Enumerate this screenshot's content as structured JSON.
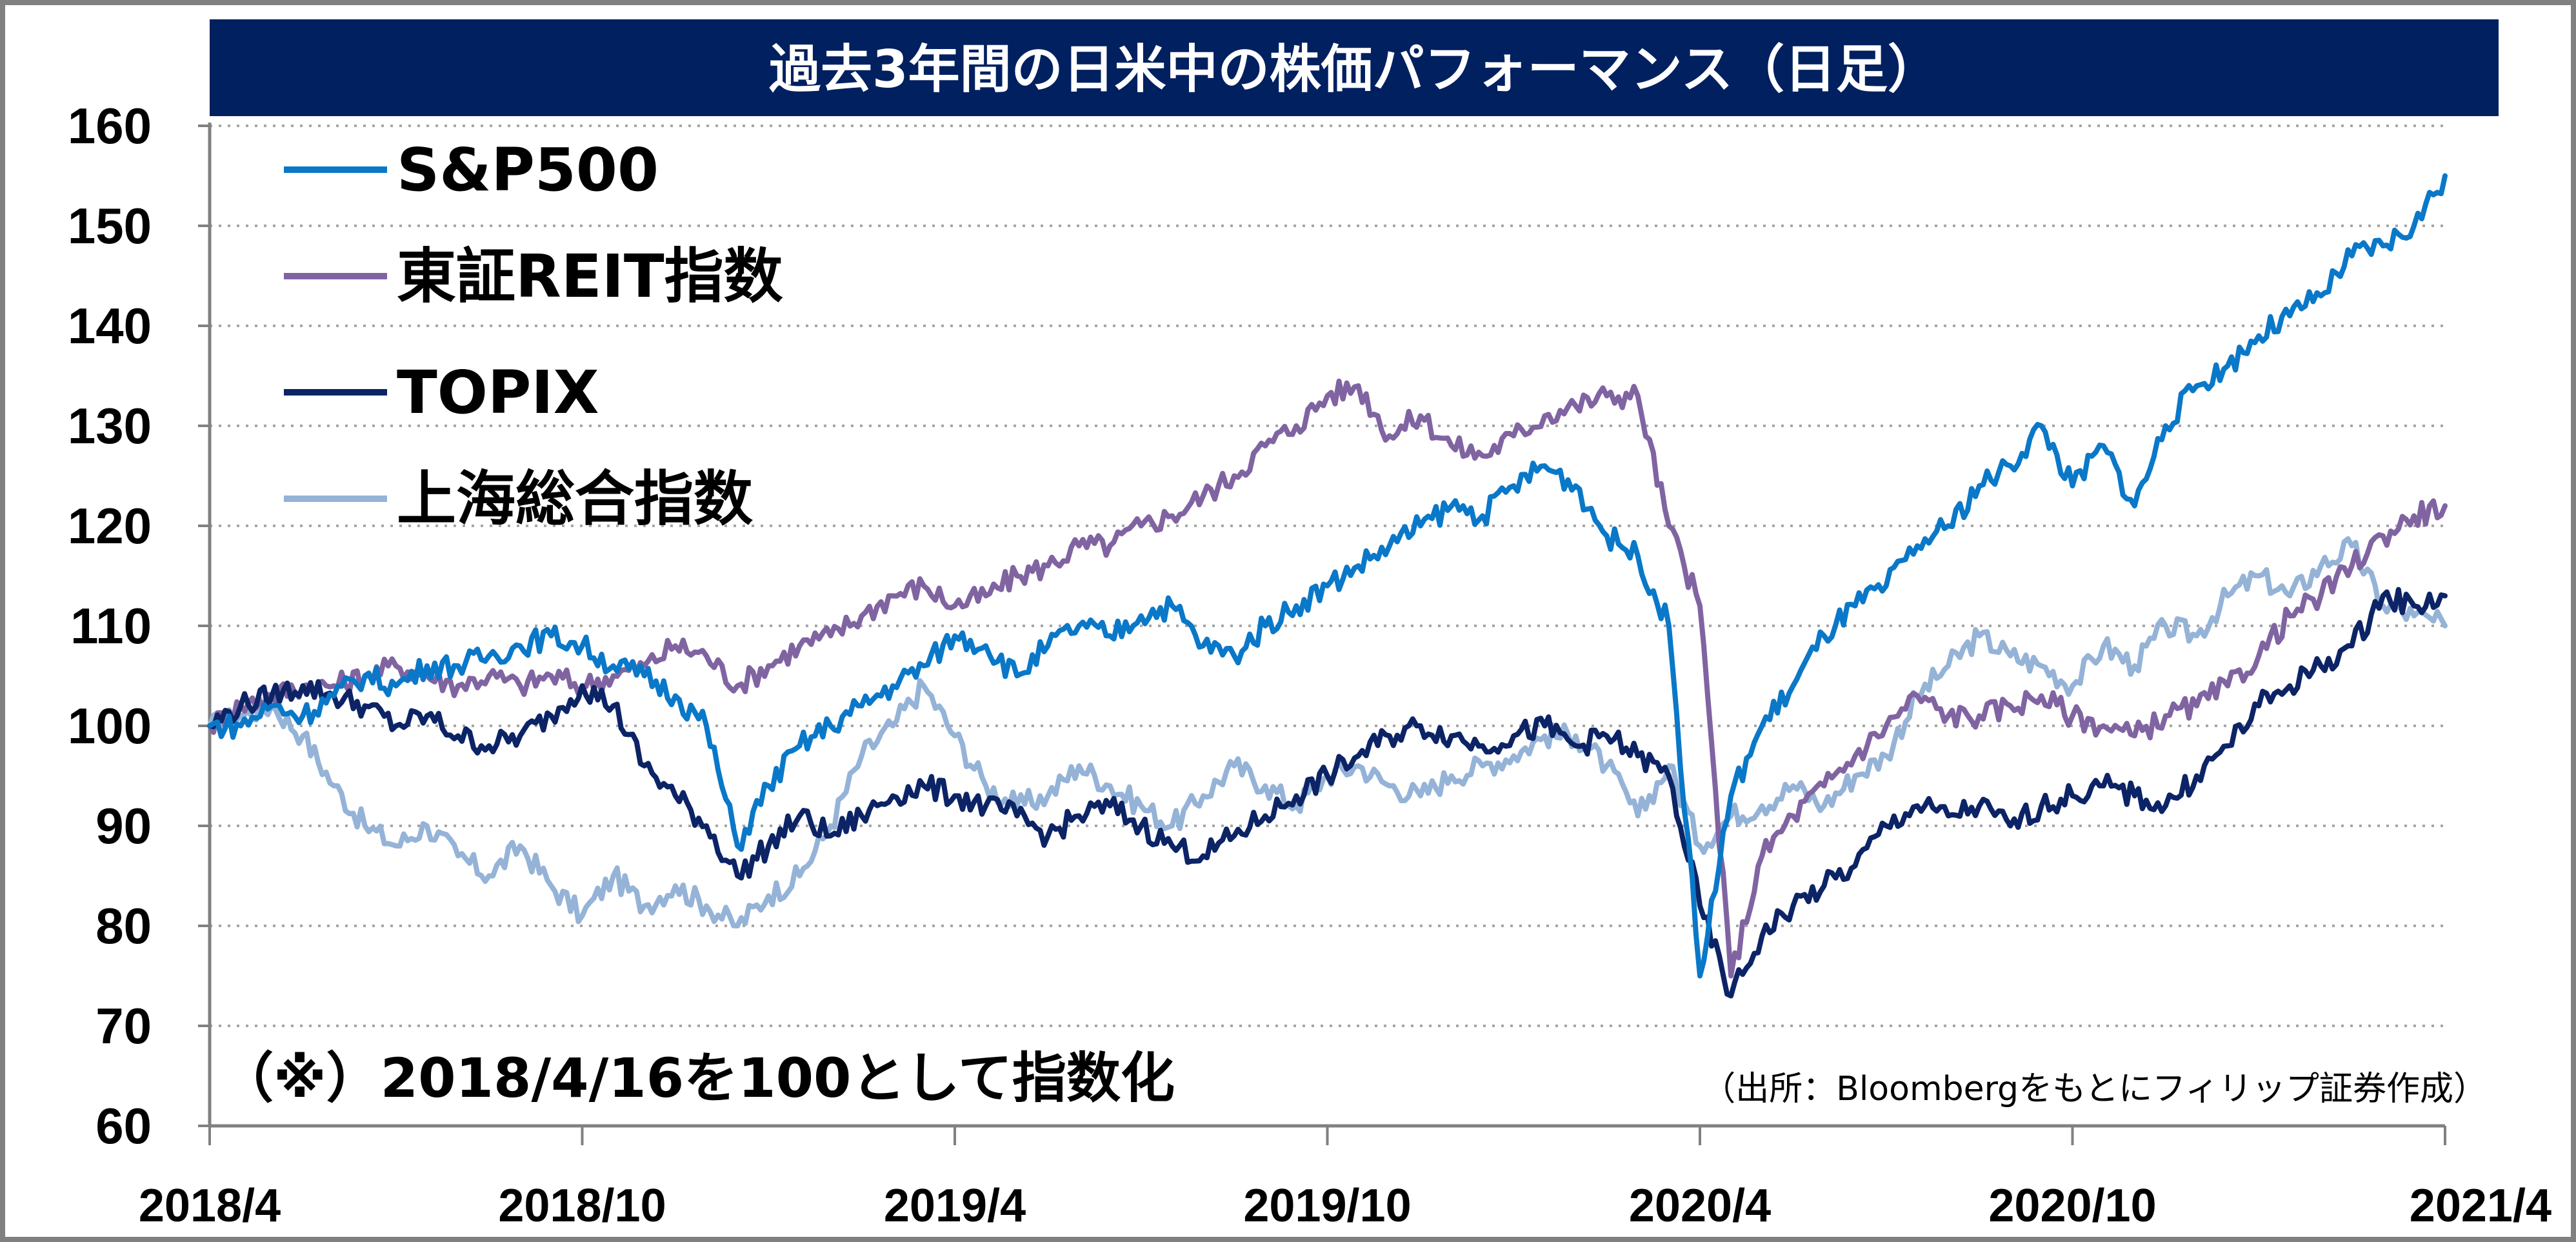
{
  "chart_data": {
    "type": "line",
    "title": "過去3年間の日米中の株価パフォーマンス（日足）",
    "note": "（※）2018/4/16を100として指数化",
    "source": "（出所：Bloombergをもとにフィリップ証券作成）",
    "ylim": [
      60,
      160
    ],
    "yticks": [
      "60",
      "70",
      "80",
      "90",
      "100",
      "110",
      "120",
      "130",
      "140",
      "150",
      "160"
    ],
    "xlim": [
      0,
      36
    ],
    "xticks": [
      {
        "label": "2018/4",
        "x": 0
      },
      {
        "label": "2018/10",
        "x": 6
      },
      {
        "label": "2019/4",
        "x": 12
      },
      {
        "label": "2019/10",
        "x": 18
      },
      {
        "label": "2020/4",
        "x": 24
      },
      {
        "label": "2020/10",
        "x": 30
      },
      {
        "label": "2021/4",
        "x": 36
      }
    ],
    "grid": "horizontal-dotted",
    "legend_position": "top-left",
    "series": [
      {
        "name": "上海総合指数",
        "color": "#95b3d7",
        "points": [
          [
            0,
            100
          ],
          [
            0.5,
            101
          ],
          [
            1,
            102
          ],
          [
            1.5,
            99
          ],
          [
            2,
            94
          ],
          [
            2.5,
            90
          ],
          [
            3,
            88
          ],
          [
            3.5,
            90
          ],
          [
            4,
            87
          ],
          [
            4.5,
            85
          ],
          [
            5,
            88
          ],
          [
            5.5,
            84
          ],
          [
            6,
            81
          ],
          [
            6.5,
            85
          ],
          [
            7,
            82
          ],
          [
            7.5,
            84
          ],
          [
            8,
            82
          ],
          [
            8.5,
            80
          ],
          [
            9,
            83
          ],
          [
            9.5,
            85
          ],
          [
            10,
            90
          ],
          [
            10.5,
            97
          ],
          [
            11,
            100
          ],
          [
            11.5,
            104
          ],
          [
            12,
            99
          ],
          [
            12.5,
            94
          ],
          [
            13,
            92
          ],
          [
            13.5,
            93
          ],
          [
            14,
            96
          ],
          [
            14.5,
            94
          ],
          [
            15,
            92
          ],
          [
            15.5,
            90
          ],
          [
            16,
            93
          ],
          [
            16.5,
            96
          ],
          [
            17,
            94
          ],
          [
            17.5,
            92
          ],
          [
            18,
            95
          ],
          [
            18.5,
            96
          ],
          [
            19,
            94
          ],
          [
            19.5,
            93
          ],
          [
            20,
            95
          ],
          [
            20.5,
            96
          ],
          [
            21,
            97
          ],
          [
            21.5,
            99
          ],
          [
            22,
            99
          ],
          [
            22.5,
            96
          ],
          [
            23,
            91
          ],
          [
            23.5,
            96
          ],
          [
            24,
            88
          ],
          [
            24.5,
            91
          ],
          [
            25,
            92
          ],
          [
            25.5,
            94
          ],
          [
            26,
            92
          ],
          [
            26.5,
            95
          ],
          [
            27,
            97
          ],
          [
            27.5,
            103
          ],
          [
            28,
            106
          ],
          [
            28.5,
            109
          ],
          [
            29,
            107
          ],
          [
            29.5,
            106
          ],
          [
            30,
            104
          ],
          [
            30.5,
            108
          ],
          [
            31,
            106
          ],
          [
            31.5,
            110
          ],
          [
            32,
            109
          ],
          [
            32.5,
            113
          ],
          [
            33,
            115
          ],
          [
            33.5,
            113
          ],
          [
            34,
            116
          ],
          [
            34.5,
            118
          ],
          [
            35,
            112
          ],
          [
            35.5,
            111
          ],
          [
            36,
            110
          ]
        ]
      },
      {
        "name": "東証REIT指数",
        "color": "#8064a2",
        "points": [
          [
            0,
            100
          ],
          [
            0.5,
            102
          ],
          [
            1,
            103
          ],
          [
            1.5,
            104
          ],
          [
            2,
            104
          ],
          [
            2.5,
            105
          ],
          [
            3,
            106
          ],
          [
            3.5,
            105
          ],
          [
            4,
            104
          ],
          [
            4.5,
            105
          ],
          [
            5,
            104
          ],
          [
            5.5,
            105
          ],
          [
            6,
            104
          ],
          [
            6.5,
            105
          ],
          [
            7,
            106
          ],
          [
            7.5,
            108
          ],
          [
            8,
            107
          ],
          [
            8.5,
            104
          ],
          [
            9,
            106
          ],
          [
            9.5,
            108
          ],
          [
            10,
            109
          ],
          [
            10.5,
            111
          ],
          [
            11,
            113
          ],
          [
            11.5,
            114
          ],
          [
            12,
            112
          ],
          [
            12.5,
            113
          ],
          [
            13,
            115
          ],
          [
            13.5,
            116
          ],
          [
            14,
            118
          ],
          [
            14.5,
            118
          ],
          [
            15,
            120
          ],
          [
            15.5,
            121
          ],
          [
            16,
            123
          ],
          [
            16.5,
            125
          ],
          [
            17,
            128
          ],
          [
            17.5,
            130
          ],
          [
            18,
            133
          ],
          [
            18.5,
            134
          ],
          [
            19,
            129
          ],
          [
            19.5,
            131
          ],
          [
            20,
            128
          ],
          [
            20.5,
            127
          ],
          [
            21,
            129
          ],
          [
            21.5,
            131
          ],
          [
            22,
            132
          ],
          [
            22.5,
            133
          ],
          [
            23,
            133
          ],
          [
            23.5,
            120
          ],
          [
            24,
            112
          ],
          [
            24.5,
            75
          ],
          [
            25,
            87
          ],
          [
            25.5,
            91
          ],
          [
            26,
            94
          ],
          [
            26.5,
            97
          ],
          [
            27,
            100
          ],
          [
            27.5,
            103
          ],
          [
            28,
            101
          ],
          [
            28.5,
            101
          ],
          [
            29,
            102
          ],
          [
            29.5,
            103
          ],
          [
            30,
            101
          ],
          [
            30.5,
            100
          ],
          [
            31,
            99
          ],
          [
            31.5,
            101
          ],
          [
            32,
            102
          ],
          [
            32.5,
            104
          ],
          [
            33,
            107
          ],
          [
            33.5,
            111
          ],
          [
            34,
            113
          ],
          [
            34.5,
            116
          ],
          [
            35,
            119
          ],
          [
            35.5,
            121
          ],
          [
            36,
            122
          ]
        ]
      },
      {
        "name": "TOPIX",
        "color": "#0c2466",
        "points": [
          [
            0,
            100
          ],
          [
            0.5,
            102
          ],
          [
            1,
            103
          ],
          [
            1.5,
            104
          ],
          [
            2,
            103
          ],
          [
            2.5,
            102
          ],
          [
            3,
            100
          ],
          [
            3.5,
            101
          ],
          [
            4,
            99
          ],
          [
            4.5,
            98
          ],
          [
            5,
            99
          ],
          [
            5.5,
            101
          ],
          [
            6,
            104
          ],
          [
            6.5,
            102
          ],
          [
            7,
            96
          ],
          [
            7.5,
            93
          ],
          [
            8,
            90
          ],
          [
            8.5,
            85
          ],
          [
            9,
            88
          ],
          [
            9.5,
            91
          ],
          [
            10,
            89
          ],
          [
            10.5,
            91
          ],
          [
            11,
            93
          ],
          [
            11.5,
            94
          ],
          [
            12,
            93
          ],
          [
            12.5,
            92
          ],
          [
            13,
            91
          ],
          [
            13.5,
            89
          ],
          [
            14,
            91
          ],
          [
            14.5,
            92
          ],
          [
            15,
            90
          ],
          [
            15.5,
            88
          ],
          [
            16,
            87
          ],
          [
            16.5,
            89
          ],
          [
            17,
            91
          ],
          [
            17.5,
            93
          ],
          [
            18,
            95
          ],
          [
            18.5,
            97
          ],
          [
            19,
            99
          ],
          [
            19.5,
            100
          ],
          [
            20,
            99
          ],
          [
            20.5,
            98
          ],
          [
            21,
            99
          ],
          [
            21.5,
            100
          ],
          [
            22,
            98
          ],
          [
            22.5,
            99
          ],
          [
            23,
            97
          ],
          [
            23.5,
            95
          ],
          [
            24,
            82
          ],
          [
            24.5,
            73
          ],
          [
            25,
            79
          ],
          [
            25.5,
            82
          ],
          [
            26,
            84
          ],
          [
            26.5,
            86
          ],
          [
            27,
            90
          ],
          [
            27.5,
            92
          ],
          [
            28,
            91
          ],
          [
            28.5,
            92
          ],
          [
            29,
            90
          ],
          [
            29.5,
            92
          ],
          [
            30,
            93
          ],
          [
            30.5,
            94
          ],
          [
            31,
            93
          ],
          [
            31.5,
            92
          ],
          [
            32,
            95
          ],
          [
            32.5,
            98
          ],
          [
            33,
            102
          ],
          [
            33.5,
            104
          ],
          [
            34,
            106
          ],
          [
            34.5,
            108
          ],
          [
            35,
            113
          ],
          [
            35.5,
            112
          ],
          [
            36,
            113
          ]
        ]
      },
      {
        "name": "S&P500",
        "color": "#0a78c8",
        "points": [
          [
            0,
            100
          ],
          [
            0.5,
            100
          ],
          [
            1,
            102
          ],
          [
            1.5,
            101
          ],
          [
            2,
            103
          ],
          [
            2.5,
            105
          ],
          [
            3,
            104
          ],
          [
            3.5,
            106
          ],
          [
            4,
            106
          ],
          [
            4.5,
            107
          ],
          [
            5,
            108
          ],
          [
            5.5,
            109
          ],
          [
            6,
            108
          ],
          [
            6.5,
            106
          ],
          [
            7,
            105
          ],
          [
            7.5,
            103
          ],
          [
            8,
            100
          ],
          [
            8.5,
            88
          ],
          [
            9,
            94
          ],
          [
            9.5,
            98
          ],
          [
            10,
            100
          ],
          [
            10.5,
            102
          ],
          [
            11,
            104
          ],
          [
            11.5,
            106
          ],
          [
            12,
            109
          ],
          [
            12.5,
            108
          ],
          [
            13,
            105
          ],
          [
            13.5,
            108
          ],
          [
            14,
            110
          ],
          [
            14.5,
            109
          ],
          [
            15,
            111
          ],
          [
            15.5,
            112
          ],
          [
            16,
            108
          ],
          [
            16.5,
            107
          ],
          [
            17,
            110
          ],
          [
            17.5,
            112
          ],
          [
            18,
            114
          ],
          [
            18.5,
            116
          ],
          [
            19,
            118
          ],
          [
            19.5,
            120
          ],
          [
            20,
            122
          ],
          [
            20.5,
            121
          ],
          [
            21,
            124
          ],
          [
            21.5,
            126
          ],
          [
            22,
            124
          ],
          [
            22.5,
            119
          ],
          [
            23,
            117
          ],
          [
            23.5,
            110
          ],
          [
            24,
            75
          ],
          [
            24.5,
            93
          ],
          [
            25,
            100
          ],
          [
            25.5,
            104
          ],
          [
            26,
            109
          ],
          [
            26.5,
            112
          ],
          [
            27,
            114
          ],
          [
            27.5,
            118
          ],
          [
            28,
            120
          ],
          [
            28.5,
            124
          ],
          [
            29,
            126
          ],
          [
            29.5,
            130
          ],
          [
            30,
            124
          ],
          [
            30.5,
            128
          ],
          [
            31,
            122
          ],
          [
            31.5,
            130
          ],
          [
            32,
            134
          ],
          [
            32.5,
            136
          ],
          [
            33,
            139
          ],
          [
            33.5,
            141
          ],
          [
            34,
            143
          ],
          [
            34.5,
            147
          ],
          [
            35,
            148
          ],
          [
            35.5,
            150
          ],
          [
            36,
            155
          ]
        ]
      }
    ]
  }
}
